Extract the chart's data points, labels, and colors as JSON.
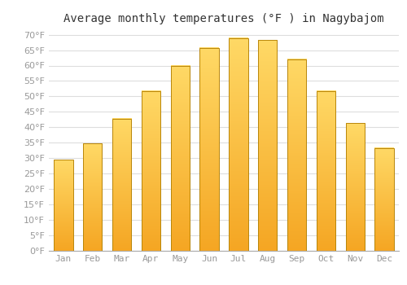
{
  "title": "Average monthly temperatures (°F ) in Nagybajom",
  "months": [
    "Jan",
    "Feb",
    "Mar",
    "Apr",
    "May",
    "Jun",
    "Jul",
    "Aug",
    "Sep",
    "Oct",
    "Nov",
    "Dec"
  ],
  "values": [
    29.5,
    34.7,
    42.8,
    51.8,
    59.9,
    65.8,
    68.9,
    68.2,
    62.1,
    51.8,
    41.4,
    33.3
  ],
  "bar_color_bottom": "#F5A623",
  "bar_color_top": "#FFD966",
  "bar_edge_color": "#A0522D",
  "background_color": "#FFFFFF",
  "grid_color": "#DDDDDD",
  "text_color": "#999999",
  "ylim": [
    0,
    72
  ],
  "yticks": [
    0,
    5,
    10,
    15,
    20,
    25,
    30,
    35,
    40,
    45,
    50,
    55,
    60,
    65,
    70
  ],
  "title_fontsize": 10,
  "tick_fontsize": 8,
  "font_family": "monospace"
}
